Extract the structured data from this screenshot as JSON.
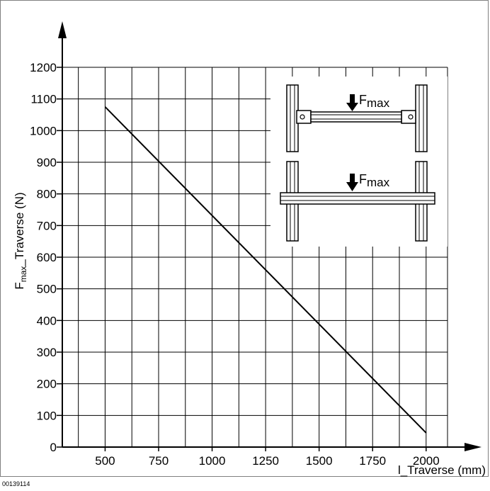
{
  "figure_id": "00139114",
  "chart_data": {
    "type": "line",
    "title": "",
    "xlabel": "l_Traverse (mm)",
    "ylabel_main": "F",
    "ylabel_sub": "max",
    "ylabel_rest": "_Traverse (N)",
    "xlim": [
      300,
      2100
    ],
    "ylim": [
      0,
      1200
    ],
    "x_ticks": [
      500,
      750,
      1000,
      1250,
      1500,
      1750,
      2000
    ],
    "y_ticks": [
      0,
      100,
      200,
      300,
      400,
      500,
      600,
      700,
      800,
      900,
      1000,
      1100,
      1200
    ],
    "grid": true,
    "series": [
      {
        "x": [
          500,
          2000
        ],
        "y": [
          1075,
          45
        ]
      }
    ]
  },
  "inset": {
    "label_top_main": "F",
    "label_top_sub": "max",
    "label_bottom_main": "F",
    "label_bottom_sub": "max"
  }
}
